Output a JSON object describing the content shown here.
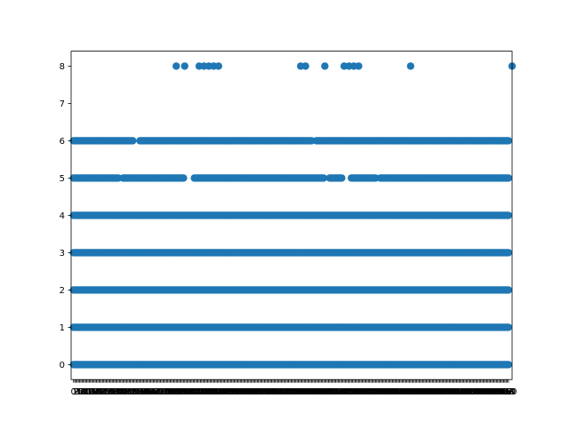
{
  "chart_data": {
    "type": "scatter",
    "title": "",
    "xlabel": "",
    "ylabel": "",
    "xlim": [
      -2,
      363
    ],
    "ylim": [
      -0.4,
      8.4
    ],
    "x_count": 361,
    "yticks": [
      0,
      1,
      2,
      3,
      4,
      5,
      6,
      7,
      8
    ],
    "grid": false,
    "marker_color": "#1f77b4",
    "series": [
      {
        "y": 0,
        "x_range": [
          0,
          360
        ],
        "missing_x": []
      },
      {
        "y": 1,
        "x_range": [
          0,
          360
        ],
        "missing_x": []
      },
      {
        "y": 2,
        "x_range": [
          0,
          360
        ],
        "missing_x": []
      },
      {
        "y": 3,
        "x_range": [
          0,
          360
        ],
        "missing_x": []
      },
      {
        "y": 4,
        "x_range": [
          0,
          360
        ],
        "missing_x": []
      },
      {
        "y": 5,
        "x_range": [
          0,
          360
        ],
        "missing_x": [
          38,
          39,
          40,
          92,
          93,
          94,
          95,
          96,
          97,
          98,
          99,
          208,
          209,
          210,
          211,
          223,
          224,
          225,
          226,
          227,
          228,
          229,
          251,
          252,
          253
        ]
      },
      {
        "y": 6,
        "x_range": [
          0,
          360
        ],
        "missing_x": [
          50,
          51,
          52,
          53,
          54,
          198,
          199,
          200
        ]
      },
      {
        "y": 8,
        "x_list": [
          85,
          92,
          104,
          108,
          112,
          116,
          120,
          188,
          192,
          208,
          224,
          228,
          232,
          236,
          279,
          363
        ]
      }
    ]
  }
}
